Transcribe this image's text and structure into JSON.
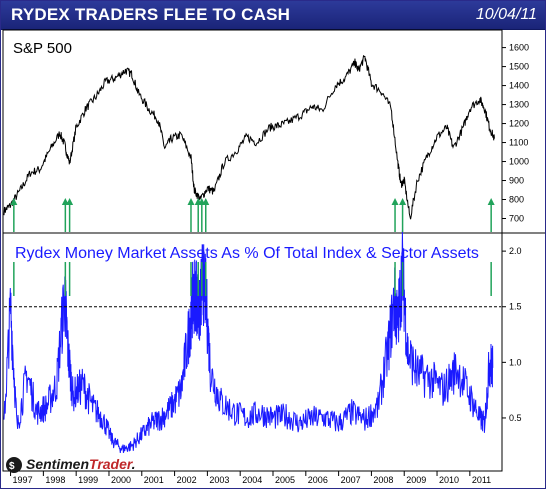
{
  "header": {
    "title": "RYDEX TRADERS FLEE TO CASH",
    "date": "10/04/11"
  },
  "brand": {
    "name_part1": "Sentimen",
    "name_part2": "Trader",
    "name_part3": ".",
    "accent": "#c0282a"
  },
  "colors": {
    "header_bg": "#1f2a85",
    "price_line": "#000000",
    "ratio_line": "#1a1aff",
    "arrow": "#21a35a",
    "dotted_line": "#000000"
  },
  "chart_data": [
    {
      "type": "line",
      "title": "S&P 500",
      "x_axis": {
        "labels": [
          "1997",
          "1998",
          "1999",
          "2000",
          "2001",
          "2002",
          "2003",
          "2004",
          "2005",
          "2006",
          "2007",
          "2008",
          "2009",
          "2010",
          "2011"
        ],
        "range": [
          1996.8,
          2011.95
        ]
      },
      "y_axis": {
        "ticks": [
          700,
          800,
          900,
          1000,
          1100,
          1200,
          1300,
          1400,
          1500,
          1600
        ],
        "range": [
          650,
          1640
        ]
      },
      "series": [
        {
          "x": [
            1996.8,
            1997.0,
            1997.3,
            1997.6,
            1997.9,
            1998.2,
            1998.5,
            1998.65,
            1998.8,
            1999.0,
            1999.3,
            1999.6,
            1999.9,
            2000.2,
            2000.5,
            2000.7,
            2000.9,
            2001.2,
            2001.5,
            2001.7,
            2001.9,
            2002.2,
            2002.5,
            2002.6,
            2002.78,
            2003.0,
            2003.2,
            2003.5,
            2003.9,
            2004.2,
            2004.5,
            2004.9,
            2005.2,
            2005.5,
            2005.9,
            2006.2,
            2006.5,
            2006.9,
            2007.2,
            2007.5,
            2007.6,
            2007.8,
            2008.0,
            2008.3,
            2008.6,
            2008.8,
            2008.9,
            2009.0,
            2009.18,
            2009.4,
            2009.7,
            2010.0,
            2010.3,
            2010.5,
            2010.8,
            2011.0,
            2011.3,
            2011.45,
            2011.6,
            2011.75
          ],
          "y": [
            740,
            770,
            850,
            940,
            960,
            1060,
            1150,
            1090,
            990,
            1180,
            1280,
            1340,
            1420,
            1440,
            1480,
            1460,
            1360,
            1280,
            1220,
            1070,
            1120,
            1140,
            1020,
            850,
            800,
            860,
            840,
            990,
            1060,
            1130,
            1100,
            1180,
            1190,
            1210,
            1250,
            1290,
            1270,
            1400,
            1440,
            1520,
            1480,
            1550,
            1410,
            1370,
            1280,
            1000,
            880,
            900,
            700,
            900,
            1030,
            1130,
            1180,
            1070,
            1180,
            1280,
            1330,
            1280,
            1180,
            1120
          ]
        }
      ],
      "annotation_arrows_at": [
        1997.1,
        1998.67,
        1998.8,
        2002.5,
        2002.72,
        2002.83,
        2002.95,
        2008.72,
        2008.95,
        2011.65
      ]
    },
    {
      "type": "line",
      "title": "Rydex Money Market Assets As % Of Total Index & Sector Assets",
      "x_axis": {
        "labels": [
          "1997",
          "1998",
          "1999",
          "2000",
          "2001",
          "2002",
          "2003",
          "2004",
          "2005",
          "2006",
          "2007",
          "2008",
          "2009",
          "2010",
          "2011"
        ],
        "range": [
          1996.8,
          2011.95
        ]
      },
      "y_axis": {
        "ticks": [
          0.5,
          1.0,
          1.5,
          2.0
        ],
        "range": [
          0.05,
          2.1
        ]
      },
      "reference_line": 1.5,
      "series": [
        {
          "x": [
            1996.8,
            1997.0,
            1997.2,
            1997.5,
            1997.8,
            1998.1,
            1998.4,
            1998.65,
            1998.75,
            1998.9,
            1999.2,
            1999.5,
            1999.8,
            2000.1,
            2000.4,
            2000.7,
            2001.0,
            2001.3,
            2001.6,
            2001.9,
            2002.2,
            2002.45,
            2002.55,
            2002.65,
            2002.75,
            2002.85,
            2002.95,
            2003.1,
            2003.4,
            2003.8,
            2004.2,
            2004.6,
            2005.0,
            2005.4,
            2005.8,
            2006.2,
            2006.6,
            2007.0,
            2007.4,
            2007.8,
            2008.2,
            2008.5,
            2008.7,
            2008.8,
            2008.95,
            2009.1,
            2009.4,
            2009.8,
            2010.2,
            2010.6,
            2011.0,
            2011.3,
            2011.45,
            2011.6,
            2011.7
          ],
          "y": [
            0.45,
            1.5,
            0.4,
            0.9,
            0.55,
            0.6,
            0.8,
            1.62,
            1.1,
            0.7,
            0.8,
            0.6,
            0.5,
            0.3,
            0.22,
            0.25,
            0.35,
            0.45,
            0.5,
            0.6,
            0.75,
            1.3,
            1.55,
            1.65,
            1.4,
            1.75,
            1.6,
            0.9,
            0.65,
            0.55,
            0.5,
            0.55,
            0.5,
            0.52,
            0.45,
            0.5,
            0.5,
            0.45,
            0.55,
            0.48,
            0.6,
            1.1,
            1.55,
            1.35,
            1.85,
            1.1,
            0.9,
            0.85,
            0.75,
            0.95,
            0.7,
            0.5,
            0.45,
            1.0,
            0.95
          ]
        }
      ]
    }
  ]
}
